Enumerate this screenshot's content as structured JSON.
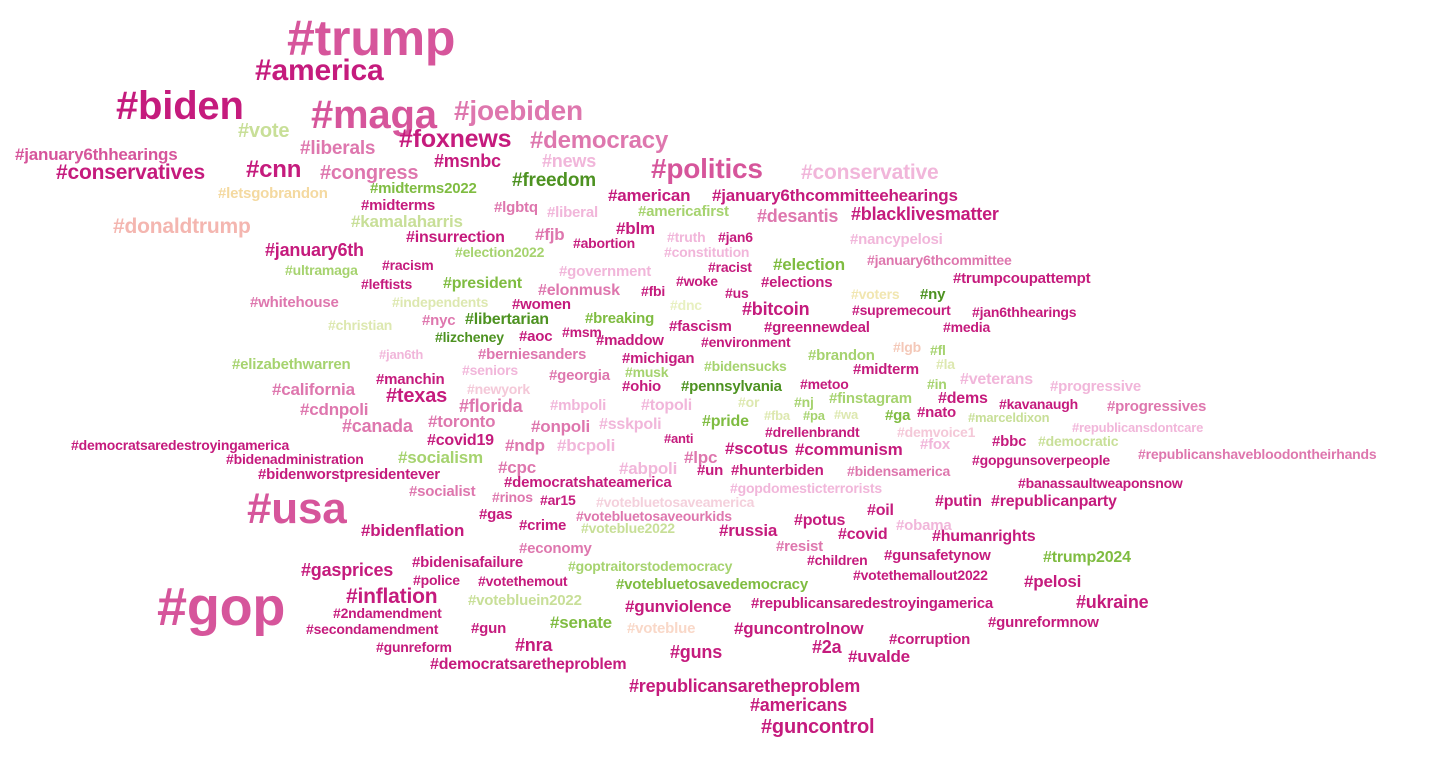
{
  "palette": {
    "magenta": "#c51b7d",
    "pink": "#de77ae",
    "light_pink": "#f1b6da",
    "pale_green": "#b8e186",
    "green": "#7fbc41",
    "dark_green": "#4d9221"
  },
  "words": [
    {
      "text": "#trump",
      "color": "#d6559b"
    },
    {
      "text": "#america",
      "color": "#c51b7d"
    },
    {
      "text": "#biden",
      "color": "#c51b7d"
    },
    {
      "text": "#maga",
      "color": "#d6559b"
    },
    {
      "text": "#joebiden",
      "color": "#de77ae"
    },
    {
      "text": "#vote",
      "color": "#c8df98"
    },
    {
      "text": "#foxnews",
      "color": "#c51b7d"
    },
    {
      "text": "#democracy",
      "color": "#de77ae"
    },
    {
      "text": "#january6thhearings",
      "color": "#d6559b"
    },
    {
      "text": "#liberals",
      "color": "#de77ae"
    },
    {
      "text": "#msnbc",
      "color": "#c51b7d"
    },
    {
      "text": "#news",
      "color": "#f1b6da"
    },
    {
      "text": "#politics",
      "color": "#d6559b"
    },
    {
      "text": "#conservative",
      "color": "#f1b6da"
    },
    {
      "text": "#conservatives",
      "color": "#c51b7d"
    },
    {
      "text": "#cnn",
      "color": "#c51b7d"
    },
    {
      "text": "#congress",
      "color": "#de77ae"
    },
    {
      "text": "#freedom",
      "color": "#4d9221"
    },
    {
      "text": "#midterms2022",
      "color": "#7fbc41"
    },
    {
      "text": "#letsgobrandon",
      "color": "#f4d9a0"
    },
    {
      "text": "#american",
      "color": "#c51b7d"
    },
    {
      "text": "#january6thcommitteehearings",
      "color": "#c51b7d"
    },
    {
      "text": "#midterms",
      "color": "#c51b7d"
    },
    {
      "text": "#lgbtq",
      "color": "#de77ae"
    },
    {
      "text": "#liberal",
      "color": "#f1b6da"
    },
    {
      "text": "#americafirst",
      "color": "#a6d36f"
    },
    {
      "text": "#desantis",
      "color": "#de77ae"
    },
    {
      "text": "#blacklivesmatter",
      "color": "#c51b7d"
    },
    {
      "text": "#kamalaharris",
      "color": "#c8df98"
    },
    {
      "text": "#donaldtrump",
      "color": "#f4b6b0"
    },
    {
      "text": "#fjb",
      "color": "#de77ae"
    },
    {
      "text": "#blm",
      "color": "#c51b7d"
    },
    {
      "text": "#truth",
      "color": "#f1b6da"
    },
    {
      "text": "#jan6",
      "color": "#c51b7d"
    },
    {
      "text": "#insurrection",
      "color": "#c51b7d"
    },
    {
      "text": "#abortion",
      "color": "#c51b7d"
    },
    {
      "text": "#constitution",
      "color": "#f1b6da"
    },
    {
      "text": "#nancypelosi",
      "color": "#f1b6da"
    },
    {
      "text": "#january6th",
      "color": "#c51b7d"
    },
    {
      "text": "#election2022",
      "color": "#a6d36f"
    },
    {
      "text": "#election",
      "color": "#7fbc41"
    },
    {
      "text": "#january6thcommittee",
      "color": "#de77ae"
    },
    {
      "text": "#ultramaga",
      "color": "#a6d36f"
    },
    {
      "text": "#racism",
      "color": "#c51b7d"
    },
    {
      "text": "#government",
      "color": "#f1b6da"
    },
    {
      "text": "#racist",
      "color": "#c51b7d"
    },
    {
      "text": "#trumpcoupattempt",
      "color": "#c51b7d"
    },
    {
      "text": "#leftists",
      "color": "#c51b7d"
    },
    {
      "text": "#president",
      "color": "#7fbc41"
    },
    {
      "text": "#elonmusk",
      "color": "#de77ae"
    },
    {
      "text": "#woke",
      "color": "#c51b7d"
    },
    {
      "text": "#elections",
      "color": "#c51b7d"
    },
    {
      "text": "#fbi",
      "color": "#c51b7d"
    },
    {
      "text": "#us",
      "color": "#c51b7d"
    },
    {
      "text": "#voters",
      "color": "#f1e6b0"
    },
    {
      "text": "#ny",
      "color": "#4d9221"
    },
    {
      "text": "#whitehouse",
      "color": "#de77ae"
    },
    {
      "text": "#independents",
      "color": "#dde8b0"
    },
    {
      "text": "#women",
      "color": "#c51b7d"
    },
    {
      "text": "#dnc",
      "color": "#e8f0c0"
    },
    {
      "text": "#bitcoin",
      "color": "#c51b7d"
    },
    {
      "text": "#supremecourt",
      "color": "#c51b7d"
    },
    {
      "text": "#jan6thhearings",
      "color": "#c51b7d"
    },
    {
      "text": "#christian",
      "color": "#dde8b0"
    },
    {
      "text": "#nyc",
      "color": "#de77ae"
    },
    {
      "text": "#libertarian",
      "color": "#4d9221"
    },
    {
      "text": "#breaking",
      "color": "#7fbc41"
    },
    {
      "text": "#fascism",
      "color": "#c51b7d"
    },
    {
      "text": "#greennewdeal",
      "color": "#c51b7d"
    },
    {
      "text": "#media",
      "color": "#c51b7d"
    },
    {
      "text": "#lizcheney",
      "color": "#4d9221"
    },
    {
      "text": "#aoc",
      "color": "#c51b7d"
    },
    {
      "text": "#msm",
      "color": "#c51b7d"
    },
    {
      "text": "#maddow",
      "color": "#c51b7d"
    },
    {
      "text": "#environment",
      "color": "#c51b7d"
    },
    {
      "text": "#elizabethwarren",
      "color": "#a6d36f"
    },
    {
      "text": "#jan6th",
      "color": "#f1b6da"
    },
    {
      "text": "#berniesanders",
      "color": "#de77ae"
    },
    {
      "text": "#michigan",
      "color": "#c51b7d"
    },
    {
      "text": "#bidensucks",
      "color": "#a6d36f"
    },
    {
      "text": "#brandon",
      "color": "#a6d36f"
    },
    {
      "text": "#lgb",
      "color": "#f4c8b8"
    },
    {
      "text": "#fl",
      "color": "#a6d36f"
    },
    {
      "text": "#seniors",
      "color": "#f1b6da"
    },
    {
      "text": "#musk",
      "color": "#a6d36f"
    },
    {
      "text": "#midterm",
      "color": "#c51b7d"
    },
    {
      "text": "#la",
      "color": "#dde8b0"
    },
    {
      "text": "#manchin",
      "color": "#c51b7d"
    },
    {
      "text": "#georgia",
      "color": "#de77ae"
    },
    {
      "text": "#ohio",
      "color": "#c51b7d"
    },
    {
      "text": "#pennsylvania",
      "color": "#4d9221"
    },
    {
      "text": "#metoo",
      "color": "#c51b7d"
    },
    {
      "text": "#in",
      "color": "#a6d36f"
    },
    {
      "text": "#veterans",
      "color": "#f1b6da"
    },
    {
      "text": "#progressive",
      "color": "#f1b6da"
    },
    {
      "text": "#california",
      "color": "#de77ae"
    },
    {
      "text": "#newyork",
      "color": "#f4c8d8"
    },
    {
      "text": "#texas",
      "color": "#c51b7d"
    },
    {
      "text": "#or",
      "color": "#dde8b0"
    },
    {
      "text": "#nj",
      "color": "#a6d36f"
    },
    {
      "text": "#finstagram",
      "color": "#a6d36f"
    },
    {
      "text": "#dems",
      "color": "#c51b7d"
    },
    {
      "text": "#kavanaugh",
      "color": "#c51b7d"
    },
    {
      "text": "#cdnpoli",
      "color": "#de77ae"
    },
    {
      "text": "#florida",
      "color": "#de77ae"
    },
    {
      "text": "#mbpoli",
      "color": "#f1b6da"
    },
    {
      "text": "#topoli",
      "color": "#f1b6da"
    },
    {
      "text": "#fba",
      "color": "#dde8b0"
    },
    {
      "text": "#pa",
      "color": "#a6d36f"
    },
    {
      "text": "#wa",
      "color": "#dde8b0"
    },
    {
      "text": "#ga",
      "color": "#7fbc41"
    },
    {
      "text": "#nato",
      "color": "#c51b7d"
    },
    {
      "text": "#marceldixon",
      "color": "#c8df98"
    },
    {
      "text": "#progressives",
      "color": "#de77ae"
    },
    {
      "text": "#canada",
      "color": "#de77ae"
    },
    {
      "text": "#toronto",
      "color": "#de77ae"
    },
    {
      "text": "#onpoli",
      "color": "#de77ae"
    },
    {
      "text": "#sskpoli",
      "color": "#f1b6da"
    },
    {
      "text": "#pride",
      "color": "#7fbc41"
    },
    {
      "text": "#drellenbrandt",
      "color": "#c51b7d"
    },
    {
      "text": "#demvoice1",
      "color": "#f4c8d8"
    },
    {
      "text": "#republicansdontcare",
      "color": "#f1b6da"
    },
    {
      "text": "#covid19",
      "color": "#c51b7d"
    },
    {
      "text": "#ndp",
      "color": "#de77ae"
    },
    {
      "text": "#bcpoli",
      "color": "#f1b6da"
    },
    {
      "text": "#anti",
      "color": "#c51b7d"
    },
    {
      "text": "#scotus",
      "color": "#c51b7d"
    },
    {
      "text": "#communism",
      "color": "#c51b7d"
    },
    {
      "text": "#fox",
      "color": "#f1b6da"
    },
    {
      "text": "#bbc",
      "color": "#c51b7d"
    },
    {
      "text": "#democratic",
      "color": "#c8df98"
    },
    {
      "text": "#democratsaredestroyingamerica",
      "color": "#c51b7d"
    },
    {
      "text": "#republicanshavebloodontheirhands",
      "color": "#de77ae"
    },
    {
      "text": "#bidenadministration",
      "color": "#c51b7d"
    },
    {
      "text": "#socialism",
      "color": "#a6d36f"
    },
    {
      "text": "#lpc",
      "color": "#de77ae"
    },
    {
      "text": "#un",
      "color": "#c51b7d"
    },
    {
      "text": "#hunterbiden",
      "color": "#c51b7d"
    },
    {
      "text": "#bidensamerica",
      "color": "#de77ae"
    },
    {
      "text": "#gopgunsoverpeople",
      "color": "#c51b7d"
    },
    {
      "text": "#cpc",
      "color": "#de77ae"
    },
    {
      "text": "#abpoli",
      "color": "#f1b6da"
    },
    {
      "text": "#bidenworstpresidentever",
      "color": "#c51b7d"
    },
    {
      "text": "#democratshateamerica",
      "color": "#c51b7d"
    },
    {
      "text": "#banassaultweaponsnow",
      "color": "#c51b7d"
    },
    {
      "text": "#socialist",
      "color": "#de77ae"
    },
    {
      "text": "#rinos",
      "color": "#de77ae"
    },
    {
      "text": "#gopdomesticterrorists",
      "color": "#f1b6da"
    },
    {
      "text": "#ar15",
      "color": "#c51b7d"
    },
    {
      "text": "#votebluetosaveamerica",
      "color": "#f4d0dc"
    },
    {
      "text": "#usa",
      "color": "#d6559b"
    },
    {
      "text": "#putin",
      "color": "#c51b7d"
    },
    {
      "text": "#republicanparty",
      "color": "#c51b7d"
    },
    {
      "text": "#gas",
      "color": "#c51b7d"
    },
    {
      "text": "#votebluetosaveourkids",
      "color": "#de77ae"
    },
    {
      "text": "#oil",
      "color": "#c51b7d"
    },
    {
      "text": "#crime",
      "color": "#c51b7d"
    },
    {
      "text": "#voteblue2022",
      "color": "#c8df98"
    },
    {
      "text": "#potus",
      "color": "#c51b7d"
    },
    {
      "text": "#obama",
      "color": "#f1b6da"
    },
    {
      "text": "#bidenflation",
      "color": "#c51b7d"
    },
    {
      "text": "#russia",
      "color": "#c51b7d"
    },
    {
      "text": "#covid",
      "color": "#c51b7d"
    },
    {
      "text": "#humanrights",
      "color": "#c51b7d"
    },
    {
      "text": "#economy",
      "color": "#de77ae"
    },
    {
      "text": "#resist",
      "color": "#de77ae"
    },
    {
      "text": "#bidenisafailure",
      "color": "#c51b7d"
    },
    {
      "text": "#children",
      "color": "#c51b7d"
    },
    {
      "text": "#gunsafetynow",
      "color": "#c51b7d"
    },
    {
      "text": "#trump2024",
      "color": "#7fbc41"
    },
    {
      "text": "#gasprices",
      "color": "#c51b7d"
    },
    {
      "text": "#goptraitorstodemocracy",
      "color": "#a6d36f"
    },
    {
      "text": "#police",
      "color": "#c51b7d"
    },
    {
      "text": "#votethemout",
      "color": "#c51b7d"
    },
    {
      "text": "#votethemallout2022",
      "color": "#c51b7d"
    },
    {
      "text": "#pelosi",
      "color": "#c51b7d"
    },
    {
      "text": "#votebluetosavedemocracy",
      "color": "#7fbc41"
    },
    {
      "text": "#gop",
      "color": "#d6559b"
    },
    {
      "text": "#inflation",
      "color": "#c51b7d"
    },
    {
      "text": "#votebluein2022",
      "color": "#c8df98"
    },
    {
      "text": "#gunviolence",
      "color": "#c51b7d"
    },
    {
      "text": "#republicansaredestroyingamerica",
      "color": "#c51b7d"
    },
    {
      "text": "#ukraine",
      "color": "#c51b7d"
    },
    {
      "text": "#2ndamendment",
      "color": "#c51b7d"
    },
    {
      "text": "#senate",
      "color": "#7fbc41"
    },
    {
      "text": "#voteblue",
      "color": "#f9d8c8"
    },
    {
      "text": "#guncontrolnow",
      "color": "#c51b7d"
    },
    {
      "text": "#gunreformnow",
      "color": "#c51b7d"
    },
    {
      "text": "#secondamendment",
      "color": "#c51b7d"
    },
    {
      "text": "#gun",
      "color": "#c51b7d"
    },
    {
      "text": "#corruption",
      "color": "#c51b7d"
    },
    {
      "text": "#gunreform",
      "color": "#c51b7d"
    },
    {
      "text": "#nra",
      "color": "#c51b7d"
    },
    {
      "text": "#guns",
      "color": "#c51b7d"
    },
    {
      "text": "#2a",
      "color": "#c51b7d"
    },
    {
      "text": "#uvalde",
      "color": "#c51b7d"
    },
    {
      "text": "#democratsaretheproblem",
      "color": "#c51b7d"
    },
    {
      "text": "#republicansaretheproblem",
      "color": "#c51b7d"
    },
    {
      "text": "#americans",
      "color": "#c51b7d"
    },
    {
      "text": "#guncontrol",
      "color": "#c51b7d"
    }
  ]
}
